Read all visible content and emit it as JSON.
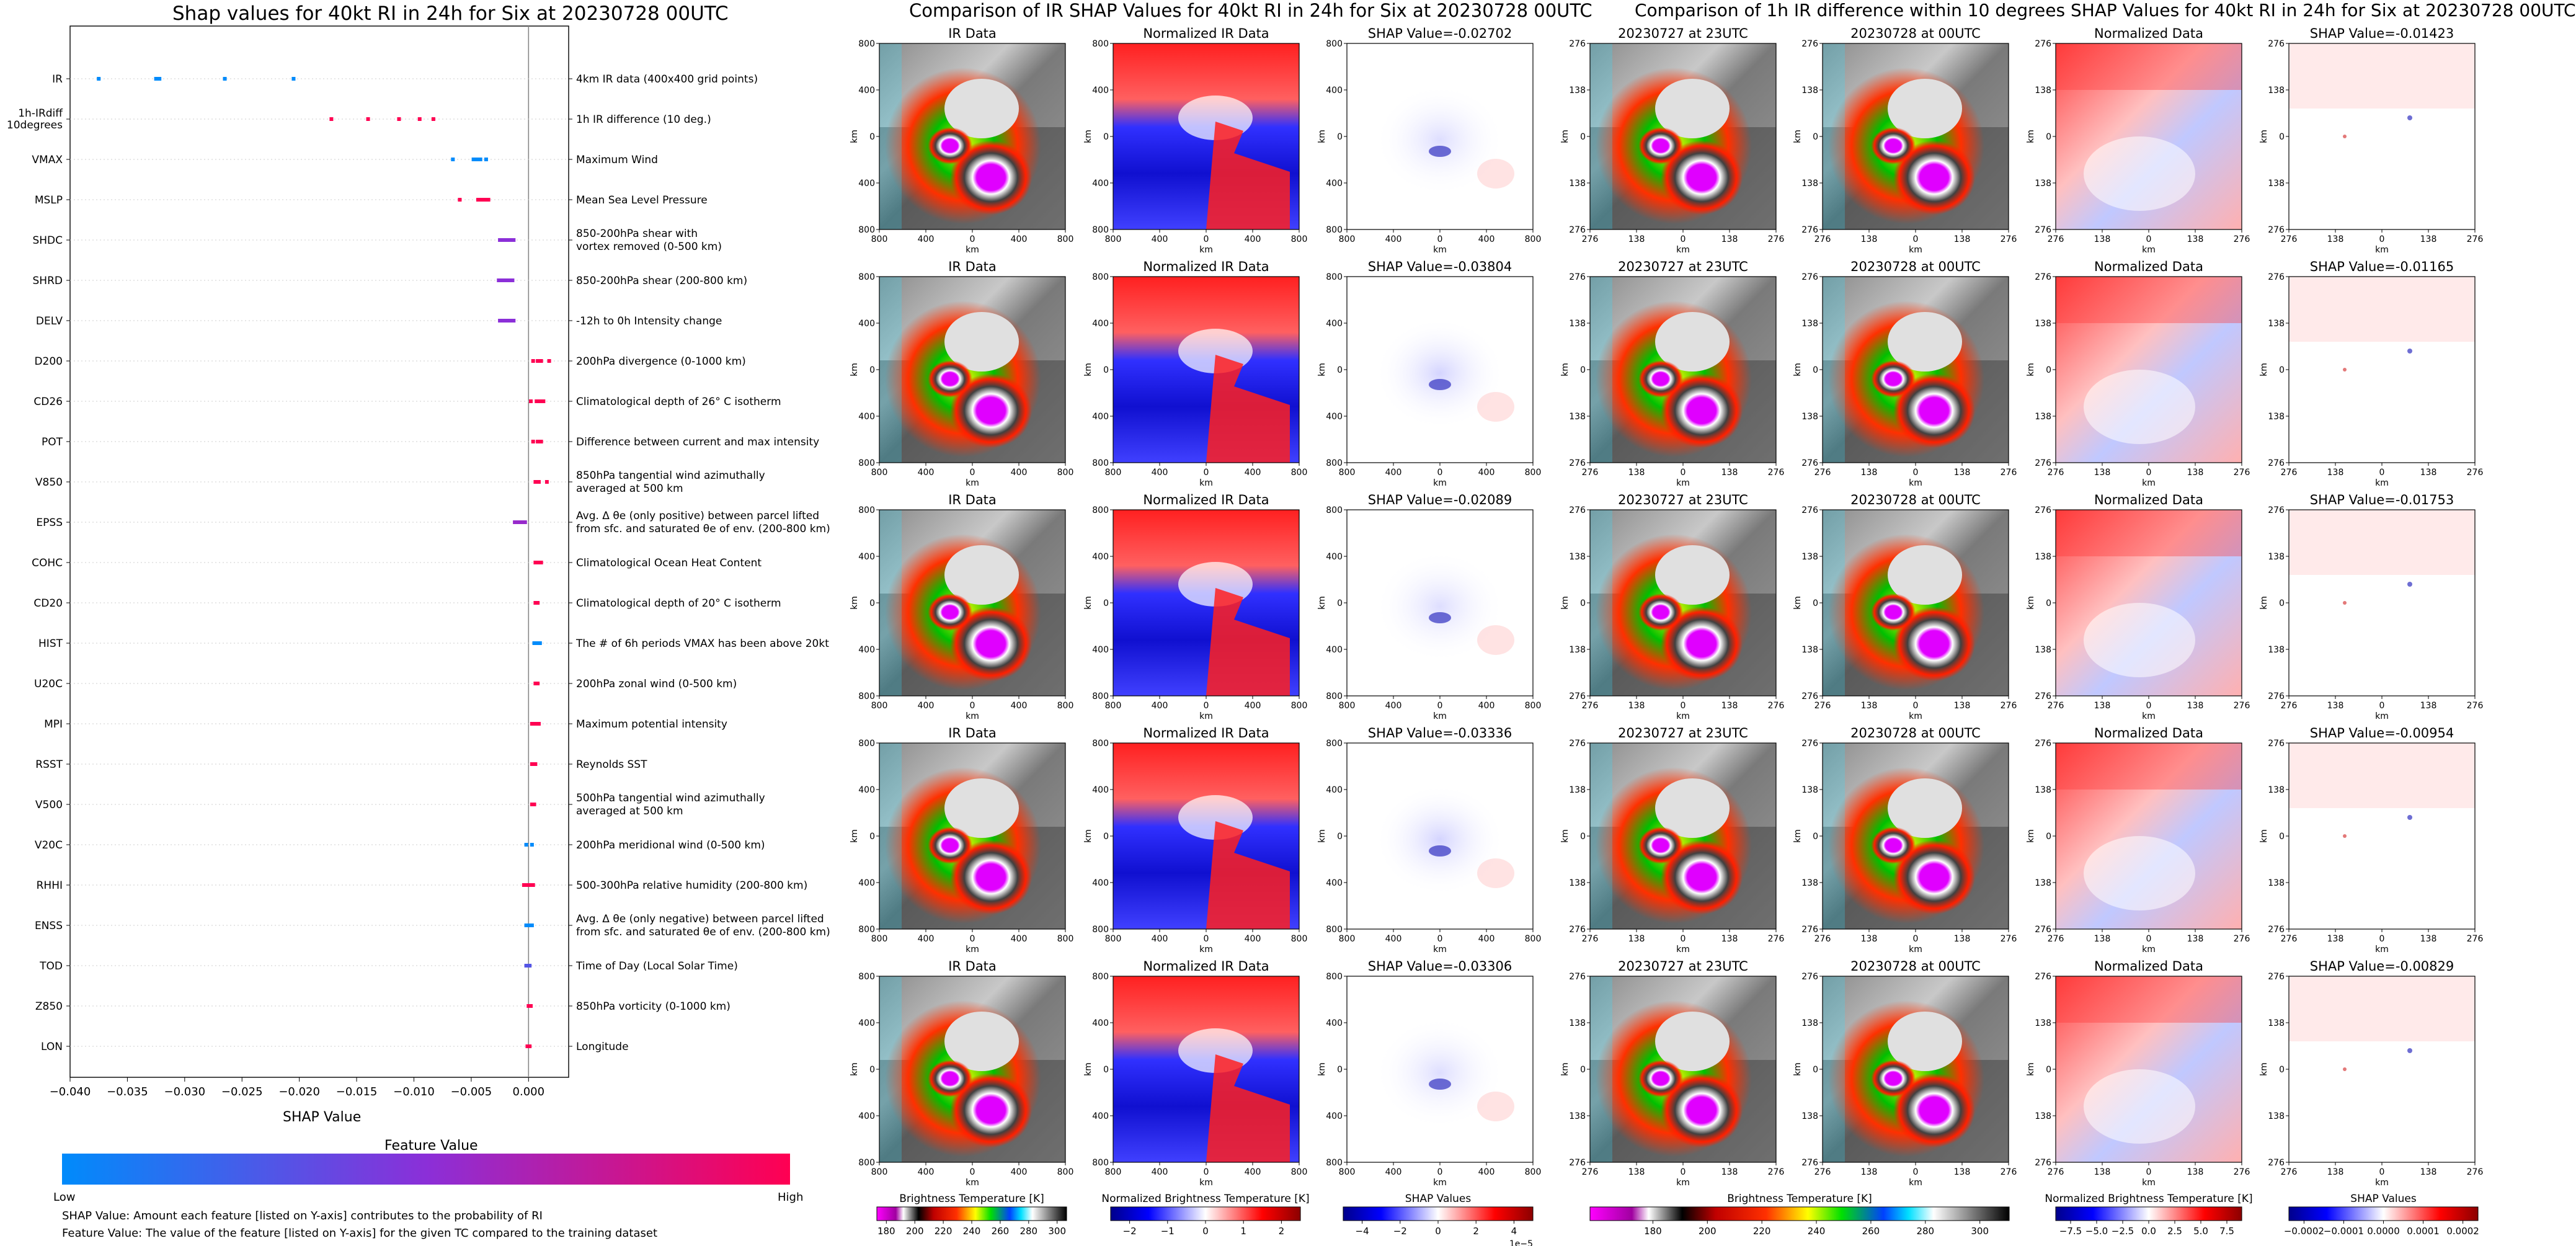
{
  "left_chart": {
    "title": "Shap values for 40kt RI in 24h for Six at 20230728 00UTC",
    "xlabel": "SHAP Value",
    "xticks": [
      "−0.040",
      "−0.035",
      "−0.030",
      "−0.025",
      "−0.020",
      "−0.015",
      "−0.010",
      "−0.005",
      "0.000"
    ],
    "colorbar_title": "Feature Value",
    "colorbar_low": "Low",
    "colorbar_high": "High",
    "footnote1": "SHAP Value: Amount each feature [listed on Y-axis] contributes to the probability of RI",
    "footnote2": "Feature Value: The value of the feature [listed on Y-axis] for the given TC compared to the training dataset",
    "colors": {
      "low": "#1e88e5",
      "mid": "#7b2fd0",
      "high": "#ff0052"
    }
  },
  "chart_data": [
    {
      "type": "scatter",
      "title": "Shap values for 40kt RI in 24h for Six at 20230728 00UTC",
      "xlabel": "SHAP Value",
      "xlim": [
        -0.04,
        0.0035
      ],
      "features": [
        {
          "name": "IR",
          "desc": "4km IR data (400x400 grid points)",
          "points": [
            [
              -0.0375,
              0.0
            ],
            [
              -0.0325,
              0.0
            ],
            [
              -0.0322,
              0.0
            ],
            [
              -0.0265,
              0.0
            ],
            [
              -0.0205,
              0.0
            ]
          ]
        },
        {
          "name": "1h-IRdiff\n10degrees",
          "desc": "1h IR difference (10 deg.)",
          "points": [
            [
              -0.0172,
              1.0
            ],
            [
              -0.014,
              1.0
            ],
            [
              -0.0113,
              1.0
            ],
            [
              -0.0095,
              1.0
            ],
            [
              -0.0083,
              1.0
            ]
          ]
        },
        {
          "name": "VMAX",
          "desc": "Maximum Wind",
          "points": [
            [
              -0.0066,
              0.0
            ],
            [
              -0.0048,
              0.0
            ],
            [
              -0.0045,
              0.0
            ],
            [
              -0.0042,
              0.0
            ],
            [
              -0.0037,
              0.0
            ]
          ]
        },
        {
          "name": "MSLP",
          "desc": "Mean Sea Level Pressure",
          "points": [
            [
              -0.006,
              1.0
            ],
            [
              -0.0044,
              1.0
            ],
            [
              -0.0041,
              1.0
            ],
            [
              -0.0038,
              1.0
            ],
            [
              -0.0035,
              1.0
            ]
          ]
        },
        {
          "name": "SHDC",
          "desc": "850-200hPa shear with\nvortex removed (0-500 km)",
          "points": [
            [
              -0.0025,
              0.5
            ],
            [
              -0.0022,
              0.5
            ],
            [
              -0.0019,
              0.5
            ],
            [
              -0.0016,
              0.5
            ],
            [
              -0.0013,
              0.5
            ]
          ]
        },
        {
          "name": "SHRD",
          "desc": "850-200hPa shear (200-800 km)",
          "points": [
            [
              -0.0026,
              0.5
            ],
            [
              -0.0023,
              0.5
            ],
            [
              -0.002,
              0.5
            ],
            [
              -0.0017,
              0.5
            ],
            [
              -0.0014,
              0.5
            ]
          ]
        },
        {
          "name": "DELV",
          "desc": "-12h to 0h Intensity change",
          "points": [
            [
              -0.0025,
              0.5
            ],
            [
              -0.0022,
              0.5
            ],
            [
              -0.0019,
              0.5
            ],
            [
              -0.0016,
              0.5
            ],
            [
              -0.0013,
              0.5
            ]
          ]
        },
        {
          "name": "D200",
          "desc": "200hPa divergence (0-1000 km)",
          "points": [
            [
              0.0004,
              1.0
            ],
            [
              0.0008,
              1.0
            ],
            [
              0.0011,
              1.0
            ],
            [
              0.0018,
              1.0
            ]
          ]
        },
        {
          "name": "CD26",
          "desc": "Climatological depth of 26° C isotherm",
          "points": [
            [
              0.0002,
              1.0
            ],
            [
              0.0007,
              1.0
            ],
            [
              0.001,
              1.0
            ],
            [
              0.0013,
              1.0
            ]
          ]
        },
        {
          "name": "POT",
          "desc": "Difference between current and max intensity",
          "points": [
            [
              0.0004,
              1.0
            ],
            [
              0.0008,
              1.0
            ],
            [
              0.0011,
              1.0
            ]
          ]
        },
        {
          "name": "V850",
          "desc": "850hPa tangential wind azimuthally\naveraged at 500 km",
          "points": [
            [
              0.0006,
              1.0
            ],
            [
              0.0009,
              1.0
            ],
            [
              0.0016,
              1.0
            ]
          ]
        },
        {
          "name": "EPSS",
          "desc": "Avg. Δ θe (only positive) between parcel lifted\nfrom sfc. and saturated θe of env. (200-800 km)",
          "points": [
            [
              -0.0012,
              0.55
            ],
            [
              -0.0009,
              0.55
            ],
            [
              -0.0006,
              0.55
            ],
            [
              -0.0003,
              0.55
            ]
          ]
        },
        {
          "name": "COHC",
          "desc": "Climatological Ocean Heat Content",
          "points": [
            [
              0.0006,
              1.0
            ],
            [
              0.0009,
              1.0
            ],
            [
              0.0011,
              1.0
            ]
          ]
        },
        {
          "name": "CD20",
          "desc": "Climatological depth of 20° C isotherm",
          "points": [
            [
              0.0006,
              1.0
            ],
            [
              0.0008,
              1.0
            ]
          ]
        },
        {
          "name": "HIST",
          "desc": "The # of 6h periods VMAX has been above 20kt",
          "points": [
            [
              0.0005,
              0.0
            ],
            [
              0.0008,
              0.0
            ],
            [
              0.001,
              0.0
            ]
          ]
        },
        {
          "name": "U20C",
          "desc": "200hPa zonal wind (0-500 km)",
          "points": [
            [
              0.0006,
              1.0
            ],
            [
              0.0008,
              1.0
            ]
          ]
        },
        {
          "name": "MPI",
          "desc": "Maximum potential intensity",
          "points": [
            [
              0.0003,
              1.0
            ],
            [
              0.0006,
              1.0
            ],
            [
              0.0009,
              1.0
            ]
          ]
        },
        {
          "name": "RSST",
          "desc": "Reynolds SST",
          "points": [
            [
              0.0003,
              1.0
            ],
            [
              0.0006,
              1.0
            ]
          ]
        },
        {
          "name": "V500",
          "desc": "500hPa tangential wind azimuthally\naveraged at 500 km",
          "points": [
            [
              0.0003,
              1.0
            ],
            [
              0.0005,
              1.0
            ]
          ]
        },
        {
          "name": "V20C",
          "desc": "200hPa meridional wind (0-500 km)",
          "points": [
            [
              -0.0002,
              0.0
            ],
            [
              0.0003,
              0.0
            ]
          ]
        },
        {
          "name": "RHHI",
          "desc": "500-300hPa relative humidity (200-800 km)",
          "points": [
            [
              -0.0004,
              1.0
            ],
            [
              -0.0001,
              1.0
            ],
            [
              0.0002,
              1.0
            ],
            [
              0.0004,
              1.0
            ]
          ]
        },
        {
          "name": "ENSS",
          "desc": "Avg. Δ θe (only negative) between parcel lifted\nfrom sfc. and saturated θe of env. (200-800 km)",
          "points": [
            [
              -0.0002,
              0.0
            ],
            [
              0.0001,
              0.0
            ],
            [
              0.0003,
              0.0
            ]
          ]
        },
        {
          "name": "TOD",
          "desc": "Time of Day (Local Solar Time)",
          "points": [
            [
              -0.0002,
              0.3
            ],
            [
              0.0001,
              0.3
            ]
          ]
        },
        {
          "name": "Z850",
          "desc": "850hPa vorticity (0-1000 km)",
          "points": [
            [
              0.0,
              1.0
            ],
            [
              0.0002,
              1.0
            ]
          ]
        },
        {
          "name": "LON",
          "desc": "Longitude",
          "points": [
            [
              -0.0001,
              1.0
            ],
            [
              0.0001,
              1.0
            ]
          ]
        }
      ]
    },
    {
      "type": "heatmap",
      "title": "Comparison of IR SHAP Values for 40kt RI in 24h for Six at 20230728 00UTC",
      "panel_titles": [
        "IR Data",
        "Normalized IR Data"
      ],
      "shap_values": [
        "SHAP Value=-0.02702",
        "SHAP Value=-0.03804",
        "SHAP Value=-0.02089",
        "SHAP Value=-0.03336",
        "SHAP Value=-0.03306"
      ],
      "yticks": [
        "800",
        "400",
        "0",
        "400",
        "800"
      ],
      "xticks": [
        "800",
        "400",
        "0",
        "400",
        "800"
      ],
      "axis_label": "km",
      "colorbars": [
        {
          "label": "Brightness Temperature [K]",
          "ticks": [
            "180",
            "200",
            "220",
            "240",
            "260",
            "280",
            "300"
          ]
        },
        {
          "label": "Normalized Brightness Temperature [K]",
          "ticks": [
            "−2",
            "−1",
            "0",
            "1",
            "2"
          ]
        },
        {
          "label": "SHAP Values",
          "ticks": [
            "−4",
            "−2",
            "0",
            "2",
            "4"
          ],
          "offset": "1e−5"
        }
      ]
    },
    {
      "type": "heatmap",
      "title": "Comparison of 1h IR difference within 10 degrees SHAP Values for 40kt RI in 24h for Six at 20230728 00UTC",
      "panel_titles": [
        "20230727 at 23UTC",
        "20230728 at 00UTC",
        "Normalized Data"
      ],
      "shap_values": [
        "SHAP Value=-0.01423",
        "SHAP Value=-0.01165",
        "SHAP Value=-0.01753",
        "SHAP Value=-0.00954",
        "SHAP Value=-0.00829"
      ],
      "yticks": [
        "276",
        "138",
        "0",
        "138",
        "276"
      ],
      "xticks": [
        "276",
        "138",
        "0",
        "138",
        "276"
      ],
      "axis_label": "km",
      "colorbars": [
        {
          "label": "Brightness Temperature [K]",
          "ticks": [
            "180",
            "200",
            "220",
            "240",
            "260",
            "280",
            "300"
          ]
        },
        {
          "label": "Normalized Brightness Temperature [K]",
          "ticks": [
            "−7.5",
            "−5.0",
            "−2.5",
            "0.0",
            "2.5",
            "5.0",
            "7.5"
          ]
        },
        {
          "label": "SHAP Values",
          "ticks": [
            "−0.0002",
            "−0.0001",
            "0.0000",
            "0.0001",
            "0.0002"
          ]
        }
      ]
    }
  ]
}
